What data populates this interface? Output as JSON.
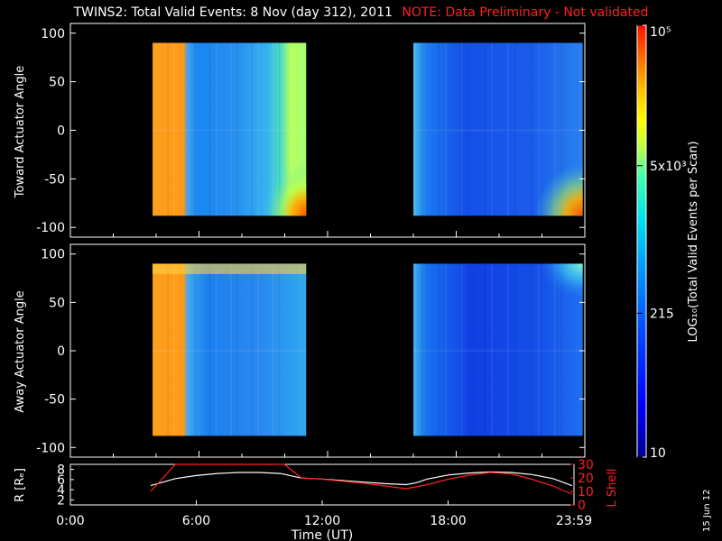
{
  "title": {
    "main": "TWINS2: Total Valid Events:  8 Nov (day 312), 2011",
    "note": "NOTE: Data Preliminary - Not validated"
  },
  "date_stamp": "15 Jun 12",
  "colors": {
    "background": "#000000",
    "note": "#ff2020",
    "r_line": "#ffffff",
    "lshell_line": "#ff2020"
  },
  "colorbar": {
    "label": "LOG₁₀(Total Valid Events per Scan)",
    "ticks": [
      "10",
      "215",
      "5x10³",
      "10⁵"
    ],
    "tick_values": [
      10,
      215,
      5000,
      100000
    ],
    "range": [
      10,
      100000
    ],
    "scale": "log"
  },
  "chart_data": [
    {
      "type": "heatmap",
      "ylabel": "Toward Actuator Angle",
      "xlim": [
        0,
        24
      ],
      "ylim": [
        -110,
        110
      ],
      "yticks": [
        "100",
        "50",
        "0",
        "-50",
        "-100"
      ],
      "ytick_values": [
        100,
        50,
        0,
        -50,
        -100
      ],
      "data_intervals_hours": [
        [
          3.83,
          11.0
        ],
        [
          16.0,
          23.9
        ]
      ],
      "angle_range": [
        -88,
        90
      ]
    },
    {
      "type": "heatmap",
      "ylabel": "Away Actuator Angle",
      "xlim": [
        0,
        24
      ],
      "ylim": [
        -110,
        110
      ],
      "yticks": [
        "100",
        "50",
        "0",
        "-50",
        "-100"
      ],
      "ytick_values": [
        100,
        50,
        0,
        -50,
        -100
      ],
      "data_intervals_hours": [
        [
          3.83,
          11.0
        ],
        [
          16.0,
          23.9
        ]
      ],
      "angle_range": [
        -88,
        90
      ]
    },
    {
      "type": "line",
      "xlabel": "Time (UT)",
      "xticks": [
        "0:00",
        "6:00",
        "12:00",
        "18:00",
        "23:59"
      ],
      "xtick_values": [
        0,
        6,
        12,
        18,
        24
      ],
      "ylabel_left": "R [Rₑ]",
      "ylabel_right": "L Shell",
      "yticks_left": [
        "8",
        "6",
        "4",
        "2"
      ],
      "yticks_left_values": [
        8,
        6,
        4,
        2
      ],
      "yticks_right": [
        "30",
        "20",
        "10",
        "0"
      ],
      "yticks_right_values": [
        30,
        20,
        10,
        0
      ],
      "ylim_left": [
        1,
        9
      ],
      "ylim_right": [
        0,
        30
      ],
      "series": [
        {
          "axis": "left",
          "x": [
            3.83,
            5,
            6,
            7,
            8,
            9,
            10,
            11,
            12,
            13,
            14,
            15,
            16,
            16.5,
            17,
            18,
            19,
            20,
            21,
            22,
            23,
            23.9
          ],
          "y": [
            4.8,
            6.2,
            6.8,
            7.2,
            7.4,
            7.4,
            7.2,
            6.3,
            6.1,
            5.8,
            5.5,
            5.2,
            5.0,
            5.4,
            6.1,
            6.9,
            7.3,
            7.5,
            7.4,
            7.0,
            6.2,
            4.8
          ]
        },
        {
          "axis": "right",
          "x": [
            3.83,
            5.0,
            5.1,
            10.1,
            10.2,
            11.0,
            12,
            14,
            16,
            17,
            18,
            19,
            20,
            21,
            22,
            23,
            23.9
          ],
          "y": [
            10,
            30,
            30,
            30,
            30,
            20,
            19,
            16,
            12,
            15,
            19,
            22,
            24,
            23,
            19,
            14,
            8
          ]
        }
      ]
    }
  ]
}
